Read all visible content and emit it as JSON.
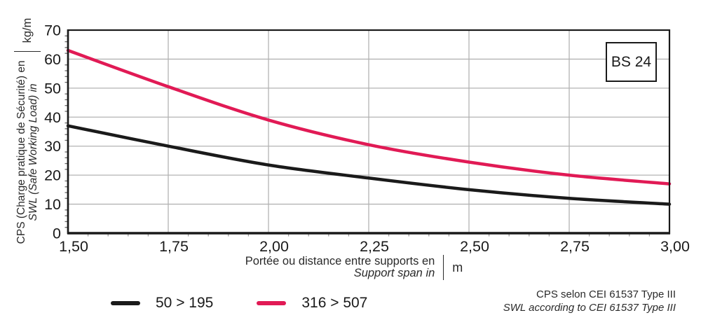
{
  "box_label": "BS 24",
  "y_axis": {
    "label_fr": "CPS (Charge pratique de Sécurité) en",
    "label_en": "SWL (Safe Working Load) in",
    "unit": "kg/m"
  },
  "x_axis": {
    "label_fr": "Portée ou distance entre supports en",
    "label_en": "Support span in",
    "unit": "m"
  },
  "legend": [
    {
      "label": "50 > 195",
      "color": "#1a1a1a"
    },
    {
      "label": "316 > 507",
      "color": "#e11a55"
    }
  ],
  "note": {
    "line1": "CPS selon CEI 61537 Type III",
    "line2": "SWL according to CEI 61537 Type III"
  },
  "colors": {
    "axis": "#1a1a1a",
    "grid": "#b3b3b3",
    "minor_tick_y": "#666666",
    "minor_tick_x": "#999999",
    "series_black": "#1a1a1a",
    "series_pink": "#e11a55"
  },
  "chart_data": {
    "type": "line",
    "title": "BS 24",
    "xlabel_fr": "Portée ou distance entre supports en (m)",
    "xlabel_en": "Support span in (m)",
    "ylabel_fr": "CPS (Charge pratique de Sécurité) en (kg/m)",
    "ylabel_en": "SWL (Safe Working Load) in (kg/m)",
    "x": [
      1.5,
      1.75,
      2.0,
      2.25,
      2.5,
      2.75,
      3.0
    ],
    "series": [
      {
        "name": "50 > 195",
        "color": "#1a1a1a",
        "values": [
          37,
          30,
          23.5,
          19,
          15,
          12,
          10
        ]
      },
      {
        "name": "316 > 507",
        "color": "#e11a55",
        "values": [
          63,
          50.5,
          39,
          30.5,
          24.5,
          20,
          17
        ]
      }
    ],
    "xlim": [
      1.5,
      3.0
    ],
    "ylim": [
      0,
      70
    ],
    "x_ticks": [
      "1,50",
      "1,75",
      "2,00",
      "2,25",
      "2,50",
      "2,75",
      "3,00"
    ],
    "x_tick_values": [
      1.5,
      1.75,
      2.0,
      2.25,
      2.5,
      2.75,
      3.0
    ],
    "y_ticks": [
      "0",
      "10",
      "20",
      "30",
      "40",
      "50",
      "60",
      "70"
    ],
    "y_tick_values": [
      0,
      10,
      20,
      30,
      40,
      50,
      60,
      70
    ],
    "x_minor_step": 0.05,
    "y_minor_step": 2,
    "grid": true,
    "legend_position": "bottom",
    "note": "CPS selon CEI 61537 Type III / SWL according to CEI 61537 Type III"
  }
}
